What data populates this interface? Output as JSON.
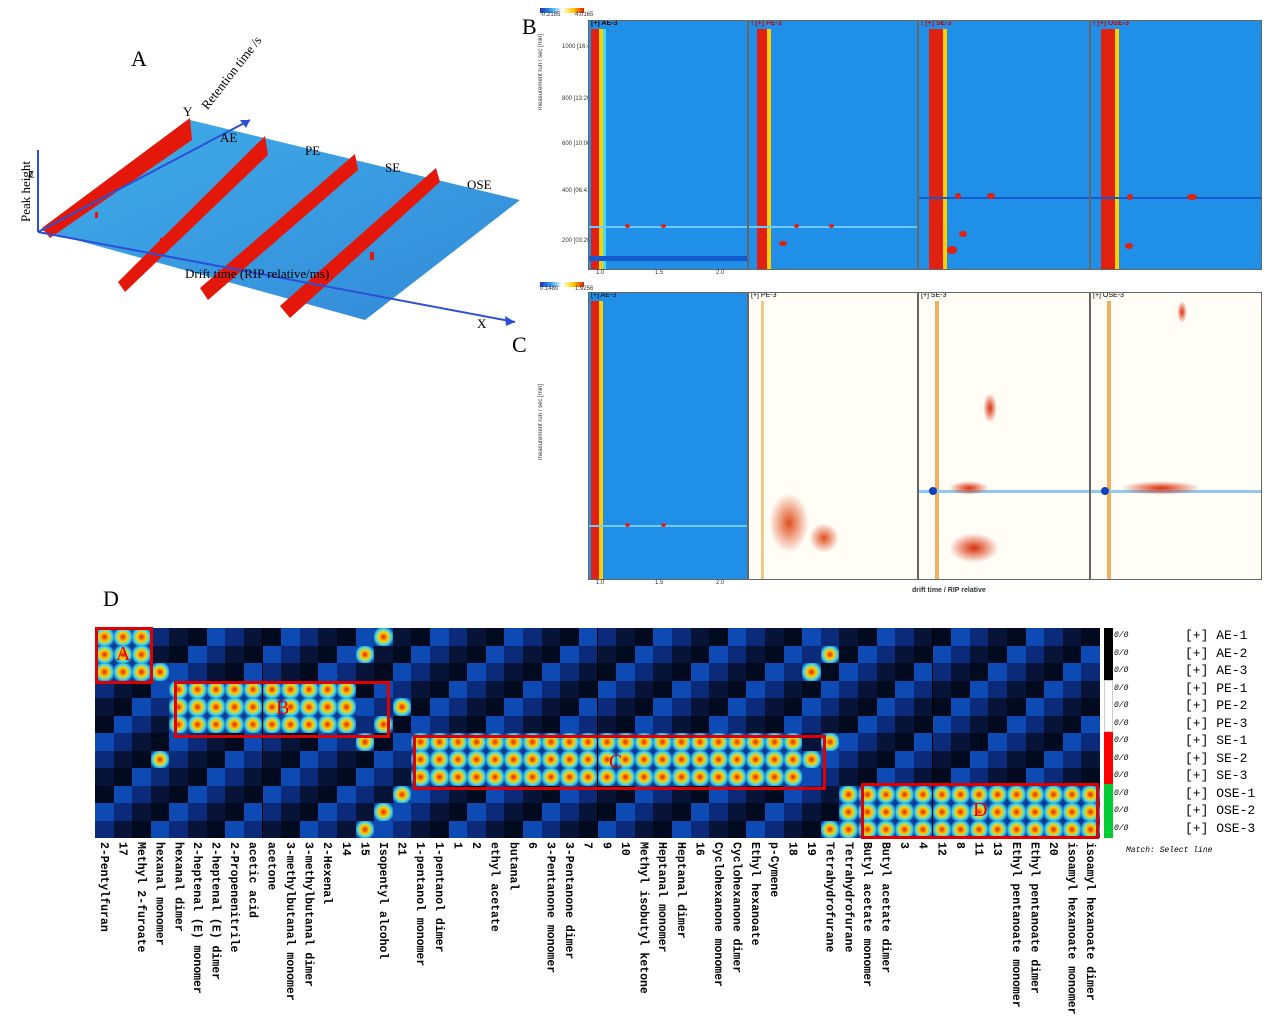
{
  "panels": {
    "a": "A",
    "b": "B",
    "c": "C",
    "d": "D"
  },
  "panel_a": {
    "y_axis_label": "Y",
    "retention_label": "Retention time /s",
    "peak_label": "Peak height",
    "z_label": "Z",
    "drift_label": "Drift time (RIP relative/ms)",
    "x_axis_label": "X",
    "samples": [
      "AE",
      "PE",
      "SE",
      "OSE"
    ]
  },
  "panel_b": {
    "scale_min": "-0.2185",
    "scale_max": "4.0165",
    "titles": [
      "[+] AE-3",
      "! [+] PE-3",
      "! [+] SE-3",
      "! [+] OSE-3"
    ],
    "y_axis_label": "measurement run / sec [min]",
    "y_ticks": [
      "1000 [16:40]",
      "800 [13:20]",
      "600 [10:00]",
      "400 [06:41]",
      "200 [03:20]"
    ],
    "x_ticks": [
      "1.0",
      "1.5",
      "2.0"
    ]
  },
  "panel_c": {
    "scale_min": "0.1480",
    "scale_max": "1.9256",
    "titles": [
      "[+] AE-3",
      "[+] PE-3",
      "[+] SE-3",
      "[+] OSE-3"
    ],
    "y_axis_label": "measurement run / sec [min]",
    "x_axis_label": "drift time / RIP relative",
    "x_ticks": [
      "1.0",
      "1.5",
      "2.0"
    ]
  },
  "panel_d": {
    "row_legend": [
      "[+] AE-1",
      "[+] AE-2",
      "[+] AE-3",
      "[+] PE-1",
      "[+] PE-2",
      "[+] PE-3",
      "[+] SE-1",
      "[+] SE-2",
      "[+] SE-3",
      "[+] OSE-1",
      "[+] OSE-2",
      "[+] OSE-3"
    ],
    "row_value": "0/0",
    "match_label": "Match: Select line",
    "box_labels": [
      "A",
      "B",
      "C",
      "D"
    ],
    "compounds": [
      "2-Pentylfuran",
      "17",
      "Methyl 2-furoate",
      "hexanal monomer",
      "hexanal dimer",
      "2-heptenal (E) monomer",
      "2-heptenal (E) dimer",
      "2-Propenenitrile",
      "acetic acid",
      "acetone",
      "3-methylbutanal monomer",
      "3-methylbutanal dimer",
      "2-Hexenal",
      "14",
      "15",
      "Isopentyl alcohol",
      "21",
      "1-pentanol monomer",
      "1-pentanol dimer",
      "1",
      "2",
      "ethyl acetate",
      "butanal",
      "6",
      "3-Pentanone monomer",
      "3-Pentanone dimer",
      "7",
      "9",
      "10",
      "Methyl isobutyl ketone",
      "Heptanal monomer",
      "Heptanal dimer",
      "16",
      "Cyclohexanone monomer",
      "Cyclohexanone dimer",
      "Ethyl hexanoate",
      "p-Cymene",
      "18",
      "19",
      "Tetrahydrofurane",
      "Tetrahydrofurane",
      "Butyl acetate monomer",
      "Butyl acetate dimer",
      "3",
      "4",
      "12",
      "8",
      "11",
      "13",
      "Ethyl pentanoate monomer",
      "Ethyl pentanoate dimer",
      "20",
      "isoamyl hexanoate monomer",
      "isoamyl hexanoate dimer"
    ],
    "colors": {
      "red_box": "#e00000",
      "row_ae": "#000000",
      "row_pe": "#ffffff",
      "row_se": "#ff0000",
      "row_ose": "#00cc33"
    }
  }
}
